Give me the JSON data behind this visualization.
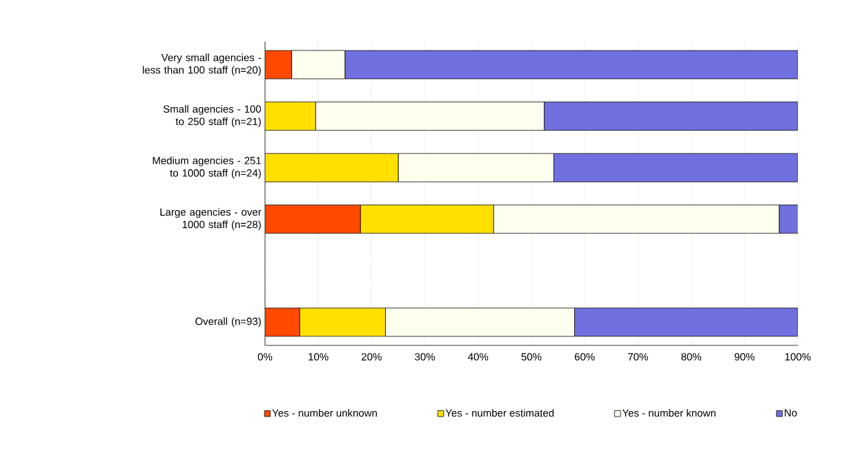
{
  "chart_data": {
    "type": "bar",
    "orientation": "horizontal",
    "stacked": true,
    "categories": [
      "Very small agencies - less than 100 staff (n=20)",
      "Small agencies - 100 to 250 staff (n=21)",
      "Medium agencies - 251 to 1000 staff (n=24)",
      "Large agencies - over 1000 staff (n=28)",
      null,
      "Overall (n=93)"
    ],
    "series": [
      {
        "name": "Yes - number unknown",
        "color": "#ff4a00",
        "values": [
          5.0,
          0,
          0,
          17.9,
          null,
          6.5
        ]
      },
      {
        "name": "Yes - number estimated",
        "color": "#ffe000",
        "values": [
          0,
          9.5,
          25.0,
          25.0,
          null,
          16.1
        ]
      },
      {
        "name": "Yes - number known",
        "color": "#fffff0",
        "values": [
          10.0,
          42.9,
          29.2,
          53.6,
          null,
          35.5
        ]
      },
      {
        "name": "No",
        "color": "#7070e0",
        "values": [
          85.0,
          47.6,
          45.8,
          3.6,
          null,
          41.9
        ]
      }
    ],
    "xlim": [
      0,
      100
    ],
    "xticks": [
      {
        "value": 0,
        "label": "0%"
      },
      {
        "value": 10,
        "label": "10%"
      },
      {
        "value": 20,
        "label": "20%"
      },
      {
        "value": 30,
        "label": "30%"
      },
      {
        "value": 40,
        "label": "40%"
      },
      {
        "value": 50,
        "label": "50%"
      },
      {
        "value": 60,
        "label": "60%"
      },
      {
        "value": 70,
        "label": "70%"
      },
      {
        "value": 80,
        "label": "80%"
      },
      {
        "value": 90,
        "label": "90%"
      },
      {
        "value": 100,
        "label": "100%"
      }
    ],
    "grid": "x",
    "legend": "bottom"
  }
}
